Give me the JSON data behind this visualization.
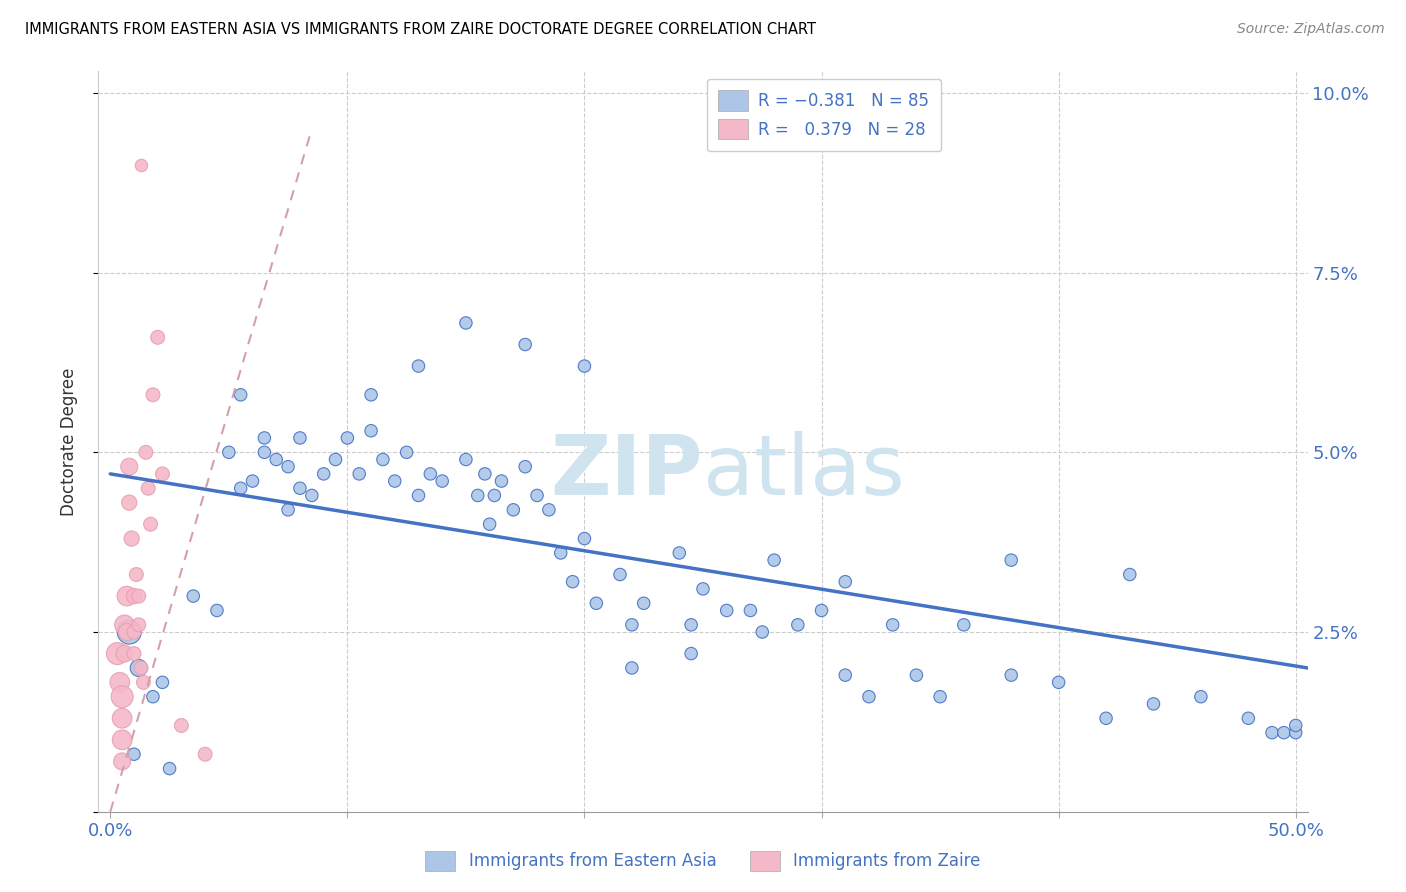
{
  "title": "IMMIGRANTS FROM EASTERN ASIA VS IMMIGRANTS FROM ZAIRE DOCTORATE DEGREE CORRELATION CHART",
  "source": "Source: ZipAtlas.com",
  "xlabel_blue": "Immigrants from Eastern Asia",
  "xlabel_pink": "Immigrants from Zaire",
  "ylabel": "Doctorate Degree",
  "xlim": [
    -0.005,
    0.505
  ],
  "ylim": [
    0.0,
    0.103
  ],
  "yticks": [
    0.0,
    0.025,
    0.05,
    0.075,
    0.1
  ],
  "ytick_labels": [
    "",
    "2.5%",
    "5.0%",
    "7.5%",
    "10.0%"
  ],
  "xticks": [
    0.0,
    0.1,
    0.2,
    0.3,
    0.4,
    0.5
  ],
  "xtick_labels": [
    "0.0%",
    "",
    "",
    "",
    "",
    "50.0%"
  ],
  "blue_color": "#adc6e8",
  "pink_color": "#f5b8c8",
  "blue_line_color": "#4472c4",
  "pink_line_color": "#e8a0b0",
  "pink_dash_color": "#d4a0b0",
  "watermark_color": "#d0e4f0",
  "blue_scatter_x": [
    0.008,
    0.012,
    0.018,
    0.022,
    0.05,
    0.06,
    0.065,
    0.075,
    0.08,
    0.085,
    0.09,
    0.095,
    0.1,
    0.105,
    0.11,
    0.115,
    0.12,
    0.125,
    0.13,
    0.135,
    0.14,
    0.15,
    0.155,
    0.158,
    0.162,
    0.165,
    0.17,
    0.175,
    0.18,
    0.19,
    0.195,
    0.2,
    0.205,
    0.215,
    0.22,
    0.225,
    0.24,
    0.245,
    0.25,
    0.26,
    0.27,
    0.275,
    0.29,
    0.3,
    0.31,
    0.32,
    0.33,
    0.34,
    0.35,
    0.36,
    0.38,
    0.4,
    0.42,
    0.44,
    0.46,
    0.48,
    0.49,
    0.495,
    0.5,
    0.5,
    0.11,
    0.13,
    0.15,
    0.175,
    0.2,
    0.28,
    0.31,
    0.055,
    0.075,
    0.38,
    0.43,
    0.22,
    0.245,
    0.16,
    0.185,
    0.01,
    0.025,
    0.035,
    0.045,
    0.055,
    0.065,
    0.07,
    0.08
  ],
  "blue_scatter_y": [
    0.025,
    0.02,
    0.016,
    0.018,
    0.05,
    0.046,
    0.05,
    0.048,
    0.052,
    0.044,
    0.047,
    0.049,
    0.052,
    0.047,
    0.053,
    0.049,
    0.046,
    0.05,
    0.044,
    0.047,
    0.046,
    0.049,
    0.044,
    0.047,
    0.044,
    0.046,
    0.042,
    0.048,
    0.044,
    0.036,
    0.032,
    0.038,
    0.029,
    0.033,
    0.026,
    0.029,
    0.036,
    0.026,
    0.031,
    0.028,
    0.028,
    0.025,
    0.026,
    0.028,
    0.019,
    0.016,
    0.026,
    0.019,
    0.016,
    0.026,
    0.019,
    0.018,
    0.013,
    0.015,
    0.016,
    0.013,
    0.011,
    0.011,
    0.011,
    0.012,
    0.058,
    0.062,
    0.068,
    0.065,
    0.062,
    0.035,
    0.032,
    0.045,
    0.042,
    0.035,
    0.033,
    0.02,
    0.022,
    0.04,
    0.042,
    0.008,
    0.006,
    0.03,
    0.028,
    0.058,
    0.052,
    0.049,
    0.045
  ],
  "blue_scatter_size": [
    300,
    150,
    80,
    80,
    80,
    80,
    80,
    80,
    80,
    80,
    80,
    80,
    80,
    80,
    80,
    80,
    80,
    80,
    80,
    80,
    80,
    80,
    80,
    80,
    80,
    80,
    80,
    80,
    80,
    80,
    80,
    80,
    80,
    80,
    80,
    80,
    80,
    80,
    80,
    80,
    80,
    80,
    80,
    80,
    80,
    80,
    80,
    80,
    80,
    80,
    80,
    80,
    80,
    80,
    80,
    80,
    80,
    80,
    80,
    80,
    80,
    80,
    80,
    80,
    80,
    80,
    80,
    80,
    80,
    80,
    80,
    80,
    80,
    80,
    80,
    80,
    80,
    80,
    80,
    80,
    80,
    80,
    80
  ],
  "pink_scatter_x": [
    0.003,
    0.004,
    0.005,
    0.005,
    0.005,
    0.005,
    0.006,
    0.006,
    0.007,
    0.007,
    0.008,
    0.008,
    0.009,
    0.01,
    0.01,
    0.01,
    0.011,
    0.012,
    0.012,
    0.013,
    0.014,
    0.015,
    0.016,
    0.017,
    0.018,
    0.02,
    0.022,
    0.03,
    0.04
  ],
  "pink_scatter_y": [
    0.022,
    0.018,
    0.016,
    0.013,
    0.01,
    0.007,
    0.026,
    0.022,
    0.03,
    0.025,
    0.048,
    0.043,
    0.038,
    0.03,
    0.025,
    0.022,
    0.033,
    0.03,
    0.026,
    0.02,
    0.018,
    0.05,
    0.045,
    0.04,
    0.058,
    0.066,
    0.047,
    0.012,
    0.008
  ],
  "pink_scatter_size": [
    250,
    200,
    250,
    200,
    200,
    150,
    200,
    150,
    200,
    150,
    150,
    120,
    120,
    120,
    100,
    100,
    100,
    100,
    100,
    100,
    100,
    100,
    100,
    100,
    100,
    100,
    100,
    100,
    100
  ],
  "pink_outlier_x": [
    0.013
  ],
  "pink_outlier_y": [
    0.09
  ],
  "pink_outlier_size": [
    80
  ],
  "blue_trend_x": [
    0.0,
    0.505
  ],
  "blue_trend_y": [
    0.047,
    0.02
  ],
  "pink_trend_x": [
    0.0,
    0.085
  ],
  "pink_trend_y": [
    0.0,
    0.095
  ]
}
